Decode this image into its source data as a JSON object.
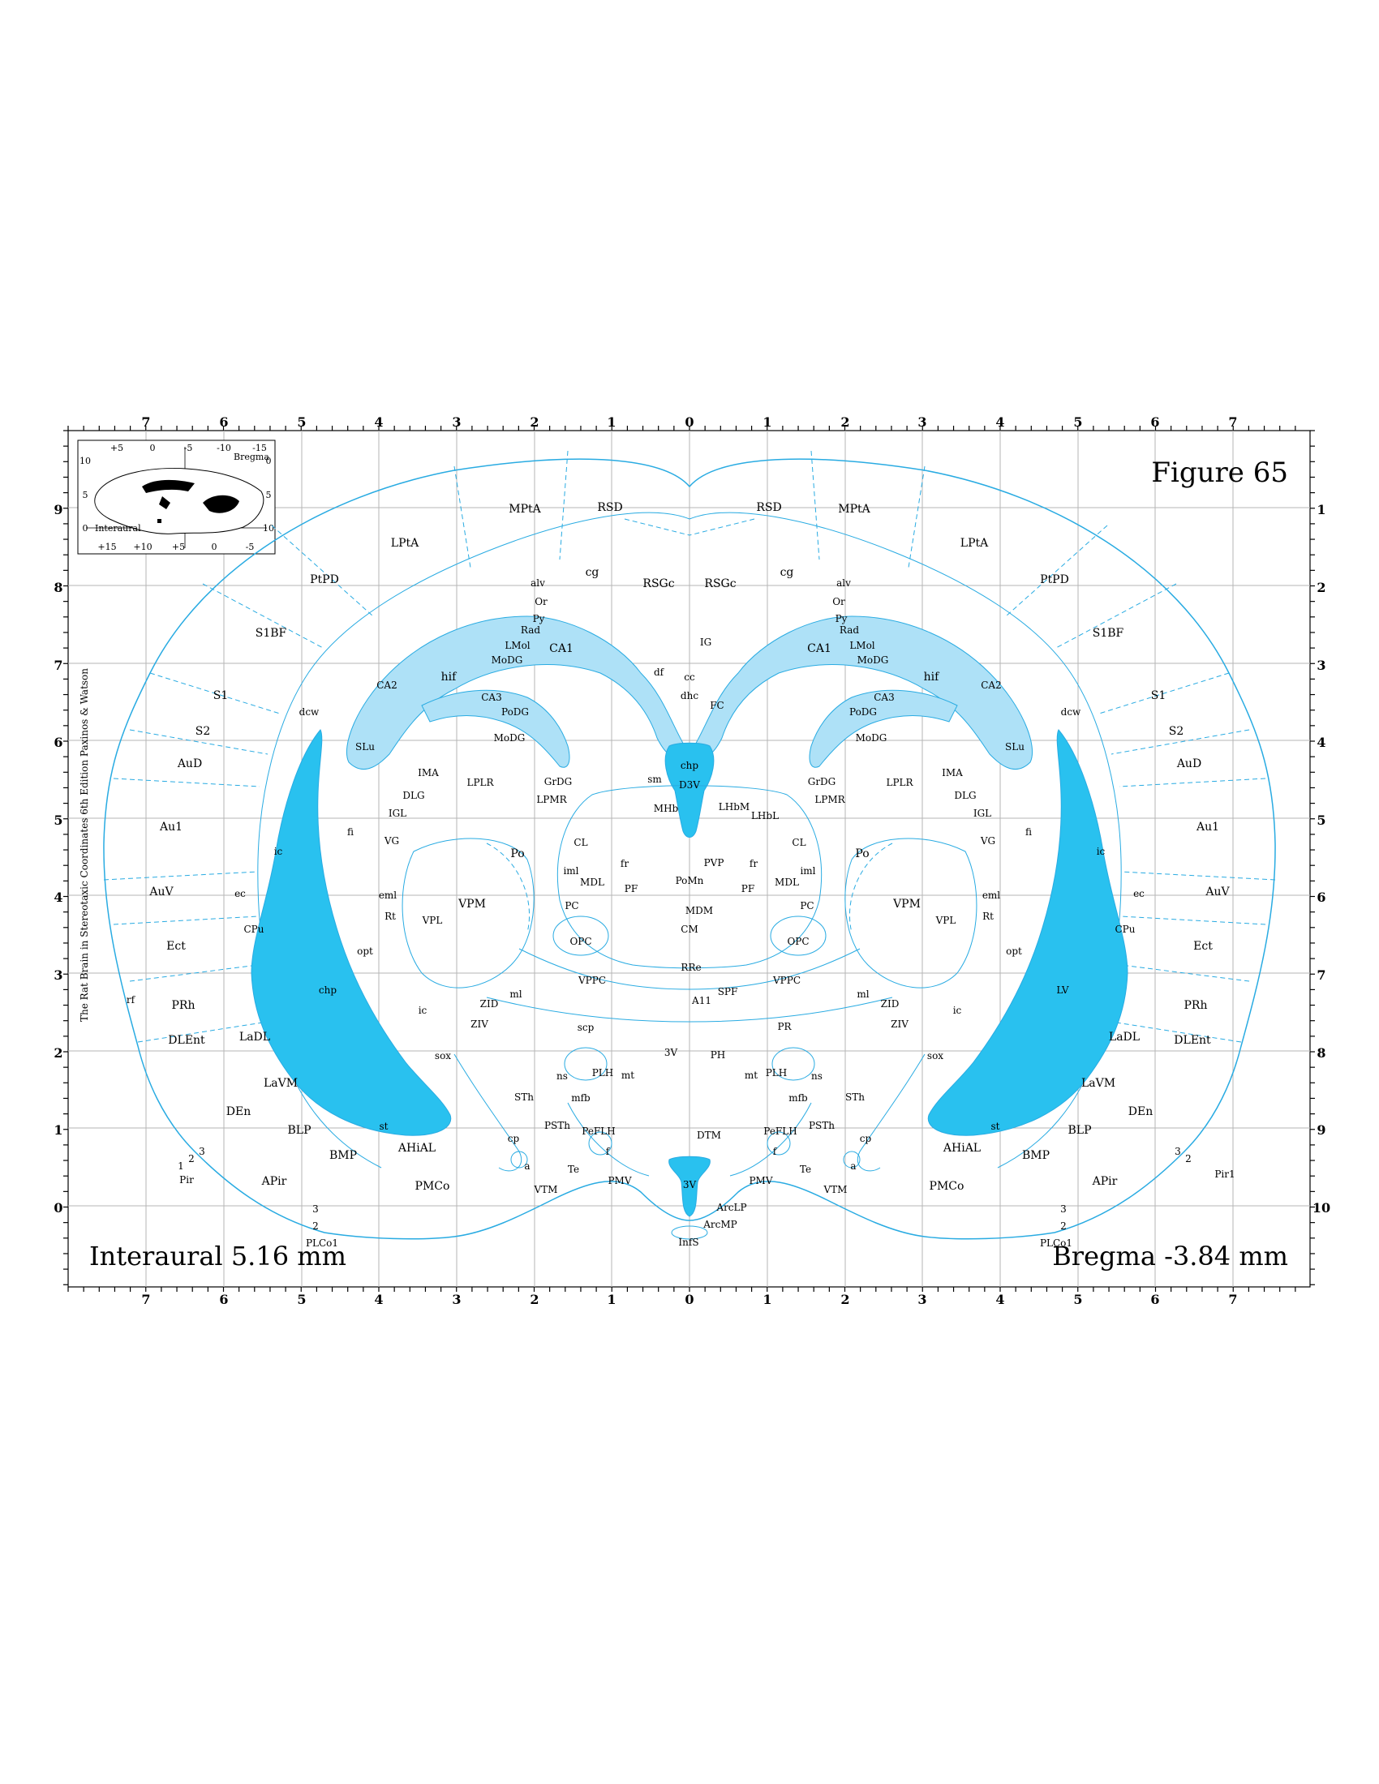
{
  "figure": {
    "title": "Figure 65",
    "interaural": "Interaural 5.16 mm",
    "bregma": "Bregma -3.84 mm",
    "side_note": "The Rat Brain in Stereotaxic Coordinates 6th Edition Paxinos & Watson"
  },
  "axes": {
    "top_ticks": [
      "7",
      "6",
      "5",
      "4",
      "3",
      "2",
      "1",
      "0",
      "1",
      "2",
      "3",
      "4",
      "5",
      "6",
      "7"
    ],
    "bottom_ticks": [
      "7",
      "6",
      "5",
      "4",
      "3",
      "2",
      "1",
      "0",
      "1",
      "2",
      "3",
      "4",
      "5",
      "6",
      "7"
    ],
    "left_ticks": [
      "9",
      "8",
      "7",
      "6",
      "5",
      "4",
      "3",
      "2",
      "1",
      "0"
    ],
    "right_ticks": [
      "1",
      "2",
      "3",
      "4",
      "5",
      "6",
      "7",
      "8",
      "9",
      "10"
    ]
  },
  "inset": {
    "bregma": "Bregma",
    "interaural": "Interaural",
    "top_ticks": [
      "+5",
      "0",
      "-5",
      "-10",
      "-15"
    ],
    "bottom_ticks": [
      "+15",
      "+10",
      "+5",
      "0",
      "-5"
    ],
    "left_ticks": [
      "10",
      "5",
      "0"
    ],
    "right_ticks": [
      "0",
      "5",
      "10"
    ]
  },
  "colors": {
    "outline": "#29abe2",
    "ventricle_fill": "#29c1ef",
    "hippocampus_fill": "#aee1f7",
    "grid": "#b5b5b5"
  },
  "regions_left": {
    "mpta": "MPtA",
    "rsd": "RSD",
    "lpta": "LPtA",
    "ptpd": "PtPD",
    "s1bf": "S1BF",
    "cg": "cg",
    "rsgc": "RSGc",
    "alv": "alv",
    "or": "Or",
    "py": "Py",
    "rad": "Rad",
    "lmol": "LMol",
    "modg": "MoDG",
    "ca1": "CA1",
    "hif": "hif",
    "ca2": "CA2",
    "ca3": "CA3",
    "podg": "PoDG",
    "modg2": "MoDG",
    "slu": "SLu",
    "s1": "S1",
    "s2": "S2",
    "dcw": "dcw",
    "aud": "AuD",
    "au1": "Au1",
    "auv": "AuV",
    "ect": "Ect",
    "prh": "PRh",
    "dlent": "DLEnt",
    "rf": "rf",
    "ladl": "LaDL",
    "lavm": "LaVM",
    "den": "DEn",
    "blp": "BLP",
    "bmp": "BMP",
    "ahial": "AHiAL",
    "apir": "APir",
    "pmco": "PMCo",
    "pir": "Pir",
    "plco1": "PLCo1",
    "n1": "1",
    "n2": "2",
    "n3": "3",
    "n3b": "3",
    "n2b": "2",
    "ic": "ic",
    "fi": "fi",
    "ec": "ec",
    "cpu": "CPu",
    "chp": "chp",
    "opt": "opt",
    "ic2": "ic",
    "sox": "sox",
    "st": "st",
    "cp": "cp",
    "ima": "IMA",
    "dlg": "DLG",
    "lplr": "LPLR",
    "igl": "IGL",
    "vg": "VG",
    "grdg": "GrDG",
    "lpmr": "LPMR",
    "po": "Po",
    "eml": "eml",
    "rt": "Rt",
    "vpl": "VPL",
    "vpm": "VPM",
    "cl": "CL",
    "iml": "iml",
    "mdl": "MDL",
    "pc": "PC",
    "opc": "OPC",
    "ml": "ml",
    "zid": "ZID",
    "ziv": "ZIV",
    "vppc": "VPPC",
    "scp": "scp",
    "ns": "ns",
    "plh": "PLH",
    "mt": "mt",
    "mfb": "mfb",
    "sth": "STh",
    "psth": "PSTh",
    "peflh": "PeFLH",
    "f": "f",
    "te": "Te",
    "vtm": "VTM",
    "pmv": "PMV",
    "a": "a",
    "fr": "fr",
    "pf": "PF"
  },
  "regions_midline": {
    "ig": "IG",
    "cc": "cc",
    "df": "df",
    "dhc": "dhc",
    "fc": "FC",
    "chp": "chp",
    "d3v": "D3V",
    "sm": "sm",
    "mhb": "MHb",
    "lhbm": "LHbM",
    "lhbl": "LHbL",
    "pvp": "PVP",
    "pomn": "PoMn",
    "mdm": "MDM",
    "cm": "CM",
    "rre": "RRe",
    "a11": "A11",
    "spf": "SPF",
    "pr": "PR",
    "v3": "3V",
    "ph": "PH",
    "dtm": "DTM",
    "v3b": "3V",
    "arclp": "ArcLP",
    "arcmp": "ArcMP",
    "infs": "InfS"
  },
  "regions_right": {
    "rsd": "RSD",
    "mpta": "MPtA",
    "lpta": "LPtA",
    "ptpd": "PtPD",
    "s1bf": "S1BF",
    "rsgc": "RSGc",
    "cg": "cg",
    "alv": "alv",
    "or": "Or",
    "py": "Py",
    "rad": "Rad",
    "ca1": "CA1",
    "lmol": "LMol",
    "modg": "MoDG",
    "hif": "hif",
    "ca2": "CA2",
    "ca3": "CA3",
    "podg": "PoDG",
    "dcw": "dcw",
    "s1": "S1",
    "s2": "S2",
    "modg2": "MoDG",
    "slu": "SLu",
    "aud": "AuD",
    "grdg": "GrDG",
    "lplr": "LPLR",
    "ima": "IMA",
    "dlg": "DLG",
    "lpmr": "LPMR",
    "igl": "IGL",
    "au1": "Au1",
    "fi": "fi",
    "ic": "ic",
    "vg": "VG",
    "cl": "CL",
    "po": "Po",
    "fr": "fr",
    "iml": "iml",
    "mdl": "MDL",
    "pf": "PF",
    "eml": "eml",
    "auv": "AuV",
    "ec": "ec",
    "rt": "Rt",
    "pc": "PC",
    "vpm": "VPM",
    "vpl": "VPL",
    "cpu": "CPu",
    "opc": "OPC",
    "opt": "opt",
    "ect": "Ect",
    "vppc": "VPPC",
    "lv": "LV",
    "ml": "ml",
    "zid": "ZID",
    "ic2": "ic",
    "prh": "PRh",
    "ziv": "ZIV",
    "ladl": "LaDL",
    "dlent": "DLEnt",
    "sox": "sox",
    "mt": "mt",
    "plh": "PLH",
    "ns": "ns",
    "lavm": "LaVM",
    "mfb": "mfb",
    "sth": "STh",
    "den": "DEn",
    "peflh": "PeFLH",
    "psth": "PSTh",
    "st": "st",
    "blp": "BLP",
    "cp": "cp",
    "f": "f",
    "ahial": "AHiAL",
    "bmp": "BMP",
    "n3": "3",
    "n2": "2",
    "pir1": "Pir1",
    "te": "Te",
    "a": "a",
    "pmv": "PMV",
    "vtm": "VTM",
    "pmco": "PMCo",
    "apir": "APir",
    "n3b": "3",
    "n2b": "2",
    "plco1": "PLCo1"
  }
}
